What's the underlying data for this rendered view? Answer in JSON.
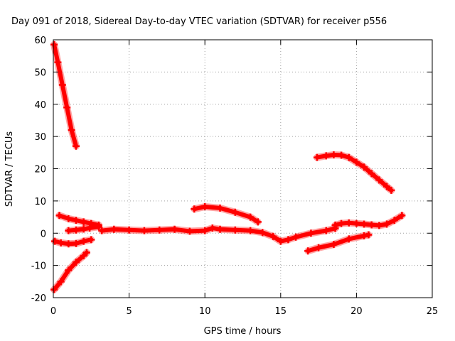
{
  "chart_data": {
    "type": "scatter",
    "title": "Day 091 of 2018, Sidereal Day-to-day VTEC variation (SDTVAR) for receiver p556",
    "xlabel": "GPS time / hours",
    "ylabel": "SDTVAR / TECUs",
    "xlim": [
      0,
      25
    ],
    "ylim": [
      -20,
      60
    ],
    "xticks": [
      0,
      5,
      10,
      15,
      20,
      25
    ],
    "yticks": [
      -20,
      -10,
      0,
      10,
      20,
      30,
      40,
      50,
      60
    ],
    "grid": true,
    "legend": "none",
    "color": "#ff0000",
    "series": [
      {
        "x": [
          0.05,
          0.3,
          0.6,
          0.9,
          1.2,
          1.5
        ],
        "y": [
          58.5,
          53,
          46,
          39,
          32,
          27
        ]
      },
      {
        "x": [
          0.05,
          0.5,
          1.0,
          1.5,
          2.0,
          2.2
        ],
        "y": [
          -17.5,
          -15,
          -11.5,
          -9,
          -7,
          -6
        ]
      },
      {
        "x": [
          0.1,
          0.5,
          1.0,
          1.5,
          2.0,
          2.5
        ],
        "y": [
          -2.5,
          -3,
          -3.3,
          -3.2,
          -2.5,
          -2
        ]
      },
      {
        "x": [
          0.4,
          1.0,
          1.5,
          2.0,
          2.5,
          3.0
        ],
        "y": [
          5.5,
          4.5,
          4.0,
          3.5,
          3.0,
          2.5
        ]
      },
      {
        "x": [
          3.0,
          2.4,
          2.0,
          1.5,
          1.0
        ],
        "y": [
          2.0,
          1.6,
          1.3,
          1.0,
          0.8
        ]
      },
      {
        "x": [
          3.2,
          4,
          5,
          6,
          7,
          8,
          9,
          10,
          10.5,
          11,
          12,
          13,
          13.8,
          14.5,
          15,
          15.5,
          16,
          17,
          18,
          18.6
        ],
        "y": [
          0.8,
          1.2,
          1.0,
          0.8,
          1.0,
          1.2,
          0.6,
          0.8,
          1.6,
          1.2,
          1.0,
          0.8,
          0.2,
          -1.0,
          -2.5,
          -2.0,
          -1.2,
          0,
          0.8,
          1.5
        ]
      },
      {
        "x": [
          9.3,
          10,
          11,
          12,
          13,
          13.5
        ],
        "y": [
          7.5,
          8.2,
          7.8,
          6.5,
          5.0,
          3.5
        ]
      },
      {
        "x": [
          17.4,
          18.0,
          18.5,
          19.0,
          19.5,
          20.0,
          20.5,
          21.0,
          21.5,
          22.0,
          22.3
        ],
        "y": [
          23.5,
          24,
          24.3,
          24.2,
          23.5,
          22,
          20.5,
          18.5,
          16.5,
          14.5,
          13.3
        ]
      },
      {
        "x": [
          18.6,
          19.0,
          19.5,
          20,
          20.5,
          21,
          21.5,
          22,
          22.5,
          23.0
        ],
        "y": [
          2.5,
          3.0,
          3.2,
          3.0,
          2.8,
          2.6,
          2.4,
          2.8,
          4.0,
          5.5
        ]
      },
      {
        "x": [
          16.8,
          17.5,
          18.5,
          19.5,
          20.5,
          20.8
        ],
        "y": [
          -5.5,
          -4.5,
          -3.5,
          -1.8,
          -0.8,
          -0.5
        ]
      }
    ]
  }
}
